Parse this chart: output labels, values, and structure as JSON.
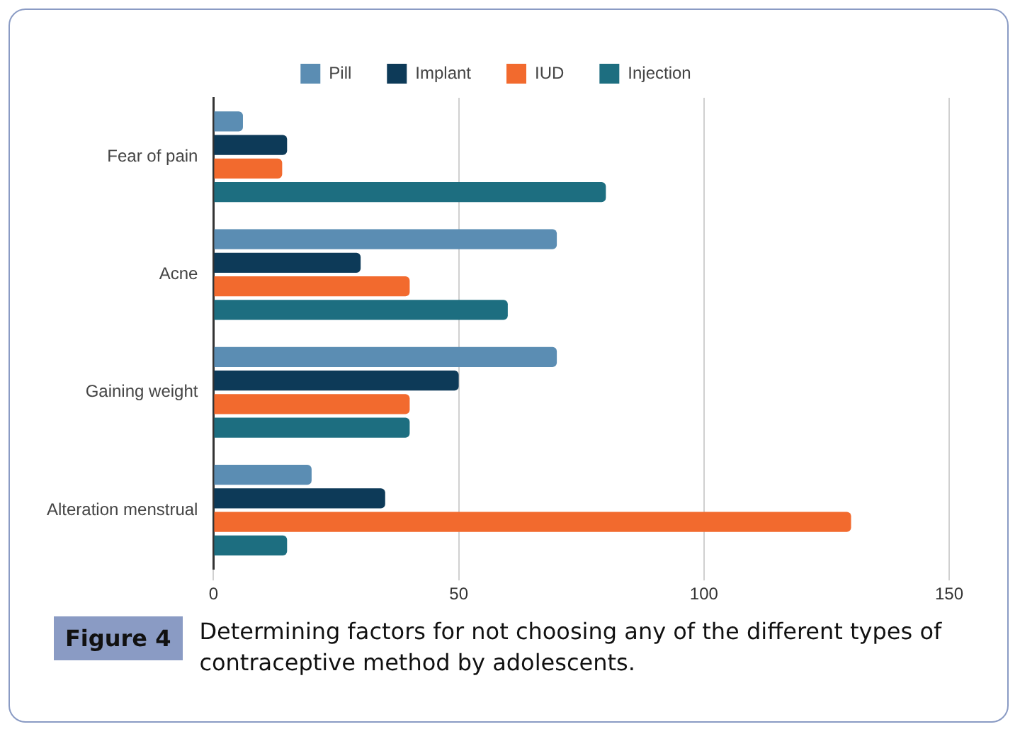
{
  "chart_data": {
    "type": "bar",
    "orientation": "horizontal",
    "categories": [
      "Fear of pain",
      "Acne",
      "Gaining weight",
      "Alteration menstrual"
    ],
    "series": [
      {
        "name": "Pill",
        "color": "#5b8db3",
        "values": [
          6,
          70,
          70,
          20
        ]
      },
      {
        "name": "Implant",
        "color": "#0d3a58",
        "values": [
          15,
          30,
          50,
          35
        ]
      },
      {
        "name": "IUD",
        "color": "#f26a2e",
        "values": [
          14,
          40,
          40,
          130
        ]
      },
      {
        "name": "Injection",
        "color": "#1d6e80",
        "values": [
          80,
          60,
          40,
          15
        ]
      }
    ],
    "xlim": [
      0,
      150
    ],
    "xticks": [
      0,
      50,
      100,
      150
    ],
    "grid": "x",
    "legend": "top",
    "annotations": [
      "Figure 4",
      "Determining factors for not choosing any of the different types of contraceptive method by adolescents."
    ]
  }
}
